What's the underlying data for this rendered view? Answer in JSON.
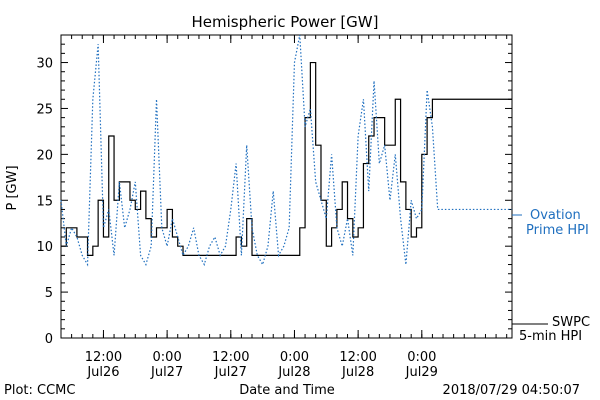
{
  "chart_data": {
    "type": "line",
    "title": "Hemispheric Power [GW]",
    "ylabel": "P [GW]",
    "xlabel": "Date and Time",
    "ylim": [
      0,
      33
    ],
    "xlim_hours": [
      0,
      85
    ],
    "y_ticks": [
      0,
      5,
      10,
      15,
      20,
      25,
      30
    ],
    "x_ticks": [
      {
        "time": "12:00",
        "date": "Jul26"
      },
      {
        "time": "0:00",
        "date": "Jul27"
      },
      {
        "time": "12:00",
        "date": "Jul27"
      },
      {
        "time": "0:00",
        "date": "Jul28"
      },
      {
        "time": "12:00",
        "date": "Jul28"
      },
      {
        "time": "0:00",
        "date": "Jul29"
      }
    ],
    "series": [
      {
        "name": "SWPC 5-min HPI",
        "label_lines": [
          "SWPC",
          "5-min HPI"
        ],
        "color": "#000000",
        "style": "solid",
        "x": [
          0,
          1,
          2,
          3,
          4,
          5,
          6,
          7,
          8,
          9,
          10,
          11,
          12,
          13,
          14,
          15,
          16,
          17,
          18,
          19,
          20,
          21,
          22,
          23,
          24,
          25,
          26,
          27,
          28,
          29,
          30,
          31,
          32,
          33,
          34,
          35,
          36,
          37,
          38,
          39,
          40,
          41,
          42,
          43,
          44,
          45,
          46,
          47,
          48,
          49,
          50,
          51,
          52,
          53,
          54,
          55,
          56,
          57,
          58,
          59,
          60,
          61,
          62,
          63,
          64,
          65,
          66,
          67,
          68,
          69,
          70,
          71,
          72,
          73,
          74,
          75,
          76,
          77,
          78,
          79,
          80,
          81,
          82,
          83,
          84,
          85
        ],
        "y": [
          10,
          12,
          12,
          11,
          11,
          9,
          10,
          15,
          11,
          22,
          15,
          17,
          17,
          15,
          14,
          16,
          13,
          11,
          12,
          12,
          14,
          11,
          10,
          9,
          9,
          9,
          9,
          9,
          9,
          9,
          9,
          9,
          9,
          11,
          10,
          13,
          9,
          9,
          9,
          9,
          9,
          9,
          9,
          9,
          9,
          12,
          24,
          30,
          21,
          15,
          10,
          12,
          14,
          17,
          13,
          11,
          12,
          19,
          22,
          24,
          24,
          21,
          21,
          26,
          17,
          14,
          11,
          12,
          20,
          24,
          26,
          26,
          26,
          26,
          26,
          26,
          26,
          26,
          26,
          26,
          26,
          26,
          26,
          26,
          26,
          26
        ]
      },
      {
        "name": "Ovation Prime HPI",
        "label_lines": [
          "Ovation",
          "Prime HPI"
        ],
        "color": "#1f6fbf",
        "style": "dotted",
        "x": [
          0,
          1,
          2,
          3,
          4,
          5,
          6,
          7,
          8,
          9,
          10,
          11,
          12,
          13,
          14,
          15,
          16,
          17,
          18,
          19,
          20,
          21,
          22,
          23,
          24,
          25,
          26,
          27,
          28,
          29,
          30,
          31,
          32,
          33,
          34,
          35,
          36,
          37,
          38,
          39,
          40,
          41,
          42,
          43,
          44,
          45,
          46,
          47,
          48,
          49,
          50,
          51,
          52,
          53,
          54,
          55,
          56,
          57,
          58,
          59,
          60,
          61,
          62,
          63,
          64,
          65,
          66,
          67,
          68,
          69,
          70,
          71,
          72,
          73,
          74,
          75,
          76,
          77,
          78,
          79,
          80,
          81,
          82,
          83,
          84,
          85
        ],
        "y": [
          15,
          10,
          12,
          11,
          9,
          8,
          26,
          32,
          12,
          14,
          9,
          17,
          12,
          14,
          17,
          9,
          8,
          10,
          26,
          12,
          10,
          13,
          11,
          9,
          10,
          12,
          9,
          8,
          10,
          11,
          9,
          10,
          14,
          19,
          9,
          21,
          12,
          9,
          8,
          10,
          16,
          9,
          10,
          12,
          30,
          33,
          23,
          25,
          17,
          15,
          13,
          20,
          12,
          10,
          13,
          9,
          22,
          26,
          16,
          28,
          19,
          21,
          15,
          20,
          13,
          8,
          15,
          13,
          14,
          27,
          23,
          14,
          14,
          14,
          14,
          14,
          14,
          14,
          14,
          14,
          14,
          14,
          14,
          14,
          14,
          14
        ]
      }
    ],
    "legend_placement": "right"
  },
  "footer": {
    "left": "Plot: CCMC",
    "right": "2018/07/29 04:50:07"
  }
}
